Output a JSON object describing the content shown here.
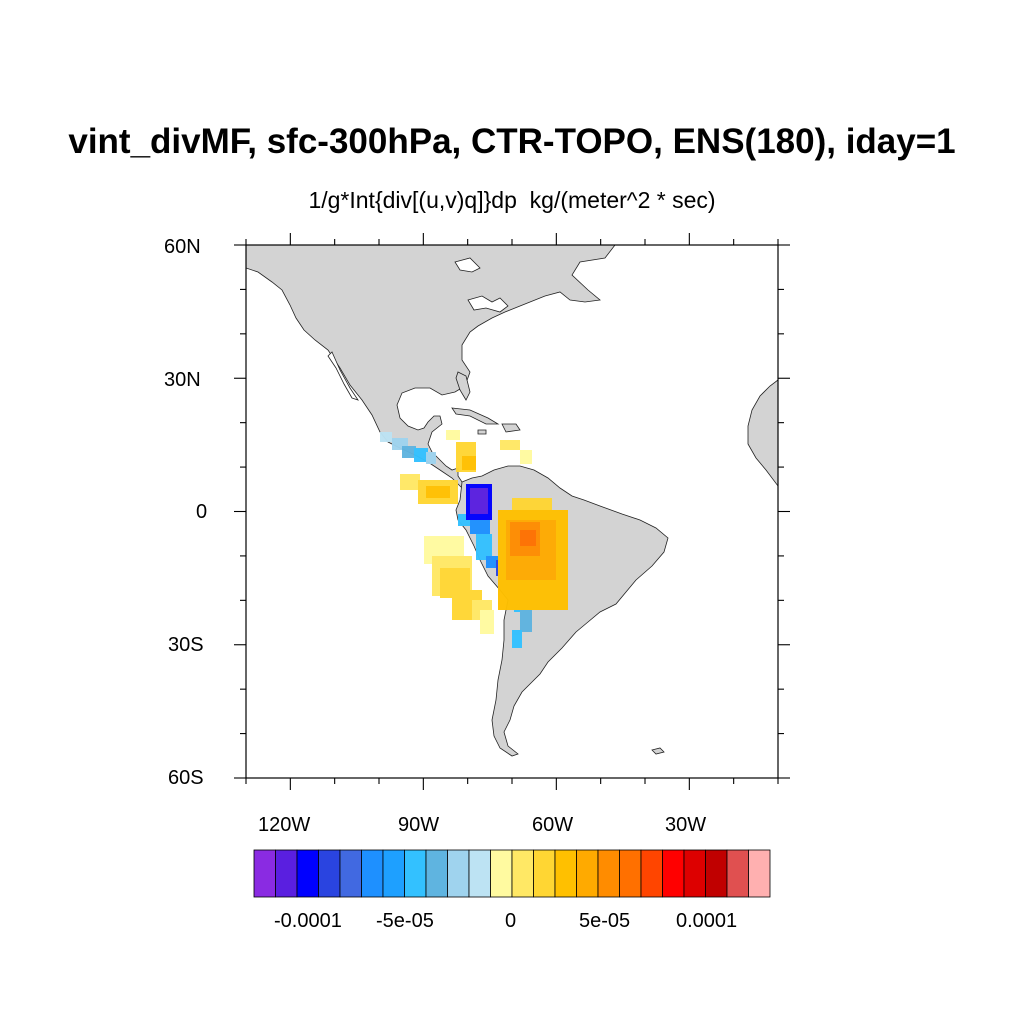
{
  "title": "vint_divMF, sfc-300hPa, CTR-TOPO, ENS(180), iday=1",
  "subtitle": "1/g*Int{div[(u,v)q]}dp  kg/(meter^2 * sec)",
  "map": {
    "projection": "cylindrical equidistant",
    "lon_range": [
      -130,
      -10
    ],
    "lat_range": [
      -60,
      60
    ],
    "land_color": "#d3d3d3",
    "ocean_color": "#ffffff",
    "lat_labels": [
      "60N",
      "30N",
      "0",
      "30S",
      "60S"
    ],
    "lon_labels": [
      "120W",
      "90W",
      "60W",
      "30W"
    ]
  },
  "colorbar": {
    "colors": [
      "#8a2be2",
      "#5a1fe0",
      "#0000ff",
      "#2a44e0",
      "#4169e1",
      "#1e90ff",
      "#1ea0ff",
      "#33c1ff",
      "#5fb4e0",
      "#9fd3ee",
      "#bde3f3",
      "#fffaa0",
      "#ffe865",
      "#ffd633",
      "#ffc000",
      "#ffaa00",
      "#ff8c00",
      "#ff7000",
      "#ff4500",
      "#ff0000",
      "#dd0000",
      "#c00000",
      "#e05050",
      "#ffb0b0"
    ],
    "tick_labels": [
      "-0.0001",
      "-5e-05",
      "0",
      "5e-05",
      "0.0001"
    ]
  },
  "field_patches": [
    {
      "shape": "cells",
      "level": "-0.5e-05 light blue",
      "color": "#5fb4e0"
    },
    {
      "shape": "cells",
      "level": "positive yellow",
      "color": "#ffe865"
    },
    {
      "shape": "cells",
      "level": "negative purple",
      "color": "#5a1fe0"
    },
    {
      "shape": "cells",
      "level": "positive orange",
      "color": "#ff8c00"
    }
  ]
}
